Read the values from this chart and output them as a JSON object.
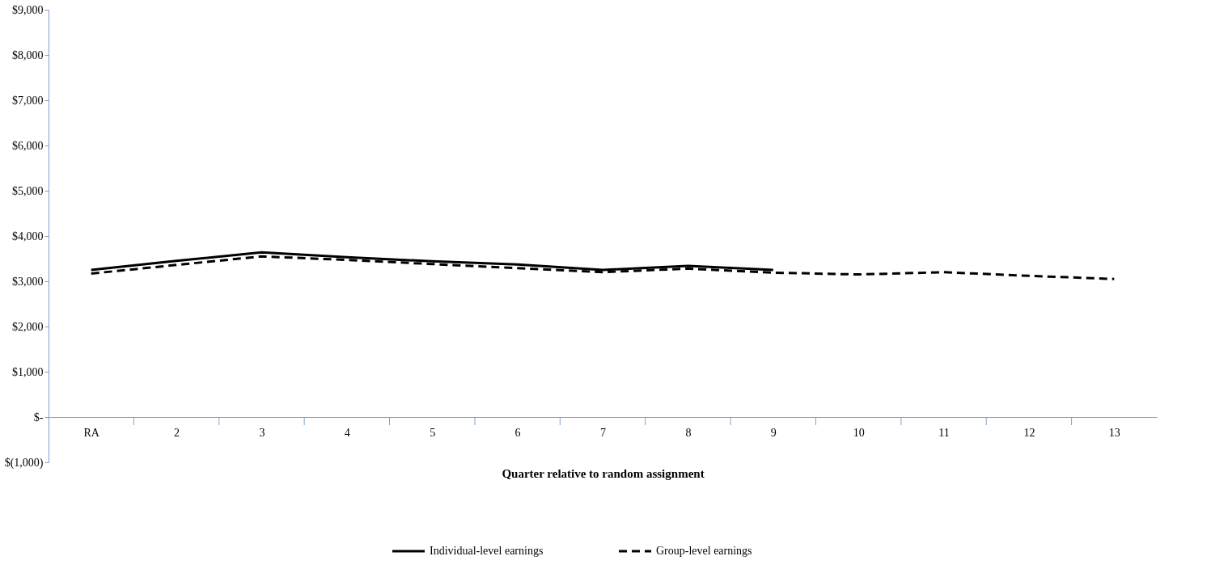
{
  "chart_data": {
    "type": "line",
    "xlabel": "Quarter relative to random assignment",
    "categories": [
      "RA",
      "2",
      "3",
      "4",
      "5",
      "6",
      "7",
      "8",
      "9",
      "10",
      "11",
      "12",
      "13"
    ],
    "series": [
      {
        "name": "Individual-level earnings",
        "color": "#000000",
        "line_style": "solid",
        "values": [
          3250,
          3450,
          3640,
          3530,
          3440,
          3370,
          3250,
          3340,
          3250,
          null,
          null,
          null,
          null
        ]
      },
      {
        "name": "Group-level earnings",
        "color": "#000000",
        "line_style": "dashed",
        "values": [
          3170,
          3360,
          3550,
          3470,
          3380,
          3290,
          3200,
          3280,
          3190,
          3150,
          3200,
          3120,
          3050
        ]
      }
    ],
    "ylim": [
      -1000,
      9000
    ],
    "yticks": [
      {
        "value": -1000,
        "label": "$(1,000)"
      },
      {
        "value": 0,
        "label": "$-"
      },
      {
        "value": 1000,
        "label": "$1,000"
      },
      {
        "value": 2000,
        "label": "$2,000"
      },
      {
        "value": 3000,
        "label": "$3,000"
      },
      {
        "value": 4000,
        "label": "$4,000"
      },
      {
        "value": 5000,
        "label": "$5,000"
      },
      {
        "value": 6000,
        "label": "$6,000"
      },
      {
        "value": 7000,
        "label": "$7,000"
      },
      {
        "value": 8000,
        "label": "$8,000"
      },
      {
        "value": 9000,
        "label": "$9,000"
      }
    ],
    "grid": false,
    "legend": "bottom",
    "marker": "none"
  }
}
